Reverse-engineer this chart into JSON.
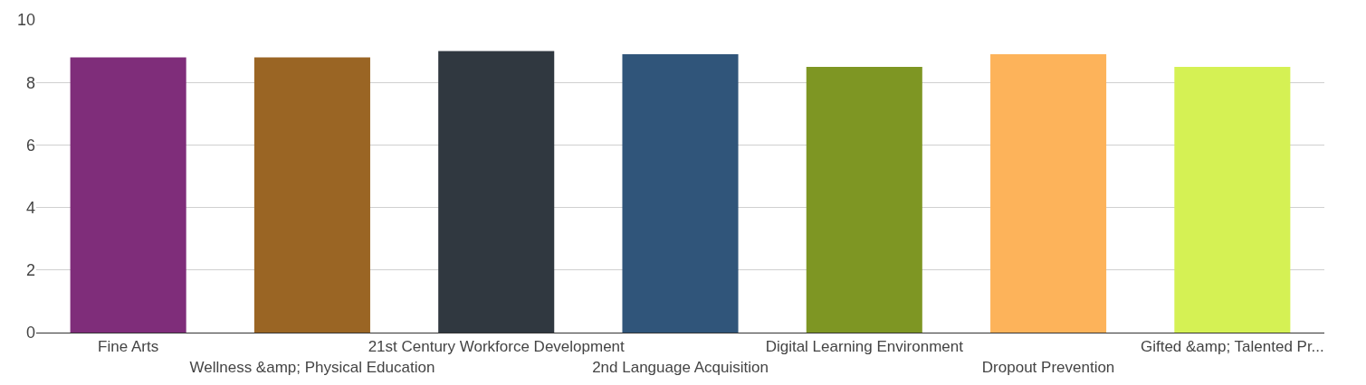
{
  "chart_data": {
    "type": "bar",
    "categories": [
      "Fine Arts",
      "Wellness &amp; Physical Education",
      "21st Century Workforce Development",
      "2nd Language Acquisition",
      "Digital Learning Environment",
      "Dropout Prevention",
      "Gifted &amp; Talented Pr..."
    ],
    "values": [
      8.8,
      8.8,
      9.0,
      8.9,
      8.5,
      8.9,
      8.5
    ],
    "colors": [
      "#7f2d7a",
      "#9a6524",
      "#303840",
      "#30557a",
      "#7e9623",
      "#fdb35a",
      "#d5f154"
    ],
    "ylim": [
      0,
      10
    ],
    "yticks": [
      0,
      2,
      4,
      6,
      8,
      10
    ],
    "grid": "y",
    "legend": false
  }
}
